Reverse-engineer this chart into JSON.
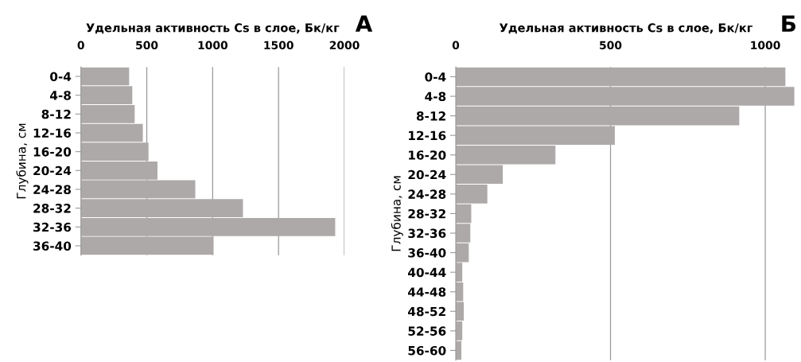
{
  "chart_data": [
    {
      "type": "bar",
      "orientation": "horizontal",
      "xlabel": "Удельная активность Cs в слое, Бк/кг",
      "ylabel": "Глубина, см",
      "annotations": [
        "А"
      ],
      "categories": [
        "0-4",
        "4-8",
        "8-12",
        "12-16",
        "16-20",
        "20-24",
        "24-28",
        "28-32",
        "32-36",
        "36-40"
      ],
      "values": [
        366,
        390,
        408,
        470,
        513,
        581,
        868,
        1230,
        1930,
        1007
      ],
      "color": "#ada9a8",
      "xlim": [
        0,
        2000
      ],
      "xticks": [
        0,
        500,
        1000,
        1500,
        2000
      ],
      "grid": "x"
    },
    {
      "type": "bar",
      "orientation": "horizontal",
      "xlabel": "Удельная активность Cs в слое, Бк/кг",
      "ylabel": "Глубина, см",
      "annotations": [
        "Б"
      ],
      "categories": [
        "0-4",
        "4-8",
        "8-12",
        "12-16",
        "16-20",
        "20-24",
        "24-28",
        "28-32",
        "32-36",
        "36-40",
        "40-44",
        "44-48",
        "48-52",
        "52-56",
        "56-60"
      ],
      "values": [
        1065,
        1094,
        916,
        514,
        322,
        152,
        102,
        50,
        47,
        42,
        21,
        24,
        26,
        21,
        18
      ],
      "color": "#ada9a8",
      "xlim": [
        0,
        1100
      ],
      "xticks": [
        0,
        500,
        1000
      ],
      "grid": "x"
    }
  ]
}
